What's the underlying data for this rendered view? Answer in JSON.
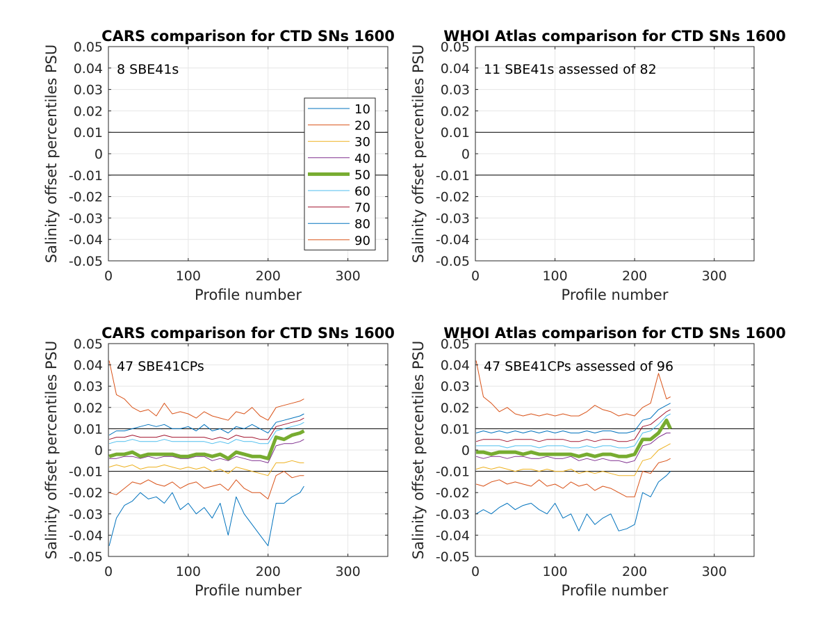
{
  "chart_data": [
    {
      "type": "line",
      "title": "CARS comparison for CTD SNs 1600",
      "annotation": "8 SBE41s",
      "xlabel": "Profile number",
      "ylabel": "Salinity offset percentiles PSU",
      "xlim": [
        0,
        350
      ],
      "ylim": [
        -0.05,
        0.05
      ],
      "x_ticks": [
        "0",
        "100",
        "200",
        "300"
      ],
      "y_ticks": [
        "-0.05",
        "-0.04",
        "-0.03",
        "-0.02",
        "-0.01",
        "0",
        "0.01",
        "0.02",
        "0.03",
        "0.04",
        "0.05"
      ],
      "reference_lines": [
        0.01,
        -0.01
      ],
      "grid": true,
      "legend": {
        "placement": "right",
        "entries": [
          "10",
          "20",
          "30",
          "40",
          "50",
          "60",
          "70",
          "80",
          "90"
        ]
      },
      "series": []
    },
    {
      "type": "line",
      "title": "WHOI Atlas comparison for CTD SNs 1600",
      "annotation": "11 SBE41s assessed of 82",
      "xlabel": "Profile number",
      "ylabel": "Salinity offset percentiles PSU",
      "xlim": [
        0,
        350
      ],
      "ylim": [
        -0.05,
        0.05
      ],
      "x_ticks": [
        "0",
        "100",
        "200",
        "300"
      ],
      "y_ticks": [
        "-0.05",
        "-0.04",
        "-0.03",
        "-0.02",
        "-0.01",
        "0",
        "0.01",
        "0.02",
        "0.03",
        "0.04",
        "0.05"
      ],
      "reference_lines": [
        0.01,
        -0.01
      ],
      "grid": true,
      "series": []
    },
    {
      "type": "line",
      "title": "CARS comparison for CTD SNs 1600",
      "annotation": "47 SBE41CPs",
      "xlabel": "Profile number",
      "ylabel": "Salinity offset percentiles PSU",
      "xlim": [
        0,
        350
      ],
      "ylim": [
        -0.05,
        0.05
      ],
      "x_ticks": [
        "0",
        "100",
        "200",
        "300"
      ],
      "y_ticks": [
        "-0.05",
        "-0.04",
        "-0.03",
        "-0.02",
        "-0.01",
        "0",
        "0.01",
        "0.02",
        "0.03",
        "0.04",
        "0.05"
      ],
      "reference_lines": [
        0.01,
        -0.01
      ],
      "grid": true,
      "x": [
        1,
        10,
        20,
        30,
        40,
        50,
        60,
        70,
        80,
        90,
        100,
        110,
        120,
        130,
        140,
        150,
        160,
        170,
        180,
        190,
        200,
        210,
        220,
        230,
        240,
        245
      ],
      "series": [
        {
          "name": "10",
          "color": "#0072bd",
          "values": [
            -0.045,
            -0.032,
            -0.026,
            -0.024,
            -0.02,
            -0.023,
            -0.022,
            -0.025,
            -0.02,
            -0.028,
            -0.025,
            -0.03,
            -0.027,
            -0.032,
            -0.025,
            -0.04,
            -0.022,
            -0.03,
            -0.035,
            -0.04,
            -0.045,
            -0.025,
            -0.025,
            -0.022,
            -0.02,
            -0.017
          ]
        },
        {
          "name": "20",
          "color": "#d95319",
          "values": [
            -0.02,
            -0.021,
            -0.018,
            -0.015,
            -0.016,
            -0.014,
            -0.016,
            -0.017,
            -0.015,
            -0.018,
            -0.016,
            -0.015,
            -0.018,
            -0.017,
            -0.016,
            -0.019,
            -0.014,
            -0.018,
            -0.02,
            -0.02,
            -0.023,
            -0.012,
            -0.01,
            -0.013,
            -0.012,
            -0.012
          ]
        },
        {
          "name": "30",
          "color": "#edb120",
          "values": [
            -0.008,
            -0.007,
            -0.008,
            -0.007,
            -0.009,
            -0.008,
            -0.008,
            -0.007,
            -0.008,
            -0.009,
            -0.008,
            -0.009,
            -0.008,
            -0.01,
            -0.009,
            -0.011,
            -0.008,
            -0.009,
            -0.01,
            -0.011,
            -0.012,
            -0.006,
            -0.006,
            -0.005,
            -0.006,
            -0.006
          ]
        },
        {
          "name": "40",
          "color": "#7e2f8e",
          "values": [
            -0.004,
            -0.004,
            -0.003,
            -0.003,
            -0.004,
            -0.003,
            -0.004,
            -0.003,
            -0.003,
            -0.004,
            -0.004,
            -0.003,
            -0.003,
            -0.005,
            -0.004,
            -0.005,
            -0.003,
            -0.004,
            -0.005,
            -0.005,
            -0.006,
            0.002,
            0.003,
            0.003,
            0.004,
            0.005
          ]
        },
        {
          "name": "50",
          "color": "#77ac30",
          "values": [
            -0.003,
            -0.002,
            -0.002,
            -0.001,
            -0.003,
            -0.002,
            -0.002,
            -0.002,
            -0.002,
            -0.003,
            -0.003,
            -0.002,
            -0.002,
            -0.003,
            -0.002,
            -0.004,
            -0.001,
            -0.002,
            -0.003,
            -0.003,
            -0.004,
            0.006,
            0.005,
            0.007,
            0.008,
            0.009
          ]
        },
        {
          "name": "60",
          "color": "#4dbeee",
          "values": [
            0.003,
            0.004,
            0.004,
            0.005,
            0.004,
            0.004,
            0.004,
            0.005,
            0.004,
            0.004,
            0.004,
            0.004,
            0.004,
            0.003,
            0.004,
            0.003,
            0.005,
            0.004,
            0.004,
            0.003,
            0.003,
            0.009,
            0.01,
            0.011,
            0.012,
            0.013
          ]
        },
        {
          "name": "70",
          "color": "#a2142f",
          "values": [
            0.005,
            0.006,
            0.006,
            0.007,
            0.006,
            0.006,
            0.006,
            0.007,
            0.006,
            0.006,
            0.006,
            0.006,
            0.006,
            0.005,
            0.006,
            0.005,
            0.007,
            0.006,
            0.006,
            0.005,
            0.005,
            0.011,
            0.012,
            0.013,
            0.014,
            0.015
          ]
        },
        {
          "name": "80",
          "color": "#0072bd",
          "values": [
            0.007,
            0.009,
            0.009,
            0.01,
            0.011,
            0.012,
            0.011,
            0.012,
            0.01,
            0.01,
            0.011,
            0.009,
            0.012,
            0.009,
            0.01,
            0.008,
            0.011,
            0.01,
            0.012,
            0.01,
            0.008,
            0.013,
            0.014,
            0.015,
            0.016,
            0.017
          ]
        },
        {
          "name": "90",
          "color": "#d95319",
          "values": [
            0.042,
            0.026,
            0.024,
            0.02,
            0.018,
            0.019,
            0.016,
            0.022,
            0.017,
            0.018,
            0.017,
            0.015,
            0.018,
            0.016,
            0.015,
            0.014,
            0.018,
            0.017,
            0.02,
            0.016,
            0.014,
            0.02,
            0.021,
            0.022,
            0.023,
            0.024
          ]
        }
      ]
    },
    {
      "type": "line",
      "title": "WHOI Atlas comparison for CTD SNs 1600",
      "annotation": "47 SBE41CPs assessed of 96",
      "xlabel": "Profile number",
      "ylabel": "Salinity offset percentiles PSU",
      "xlim": [
        0,
        350
      ],
      "ylim": [
        -0.05,
        0.05
      ],
      "x_ticks": [
        "0",
        "100",
        "200",
        "300"
      ],
      "y_ticks": [
        "-0.05",
        "-0.04",
        "-0.03",
        "-0.02",
        "-0.01",
        "0",
        "0.01",
        "0.02",
        "0.03",
        "0.04",
        "0.05"
      ],
      "reference_lines": [
        0.01,
        -0.01
      ],
      "grid": true,
      "x": [
        1,
        10,
        20,
        30,
        40,
        50,
        60,
        70,
        80,
        90,
        100,
        110,
        120,
        130,
        140,
        150,
        160,
        170,
        180,
        190,
        200,
        210,
        220,
        230,
        240,
        245
      ],
      "series": [
        {
          "name": "10",
          "color": "#0072bd",
          "values": [
            -0.03,
            -0.028,
            -0.03,
            -0.027,
            -0.025,
            -0.028,
            -0.026,
            -0.025,
            -0.028,
            -0.03,
            -0.025,
            -0.032,
            -0.03,
            -0.038,
            -0.03,
            -0.035,
            -0.032,
            -0.03,
            -0.038,
            -0.037,
            -0.035,
            -0.02,
            -0.022,
            -0.015,
            -0.012,
            -0.01
          ]
        },
        {
          "name": "20",
          "color": "#d95319",
          "values": [
            -0.016,
            -0.017,
            -0.015,
            -0.014,
            -0.016,
            -0.015,
            -0.016,
            -0.017,
            -0.014,
            -0.017,
            -0.016,
            -0.018,
            -0.015,
            -0.017,
            -0.016,
            -0.019,
            -0.017,
            -0.018,
            -0.02,
            -0.022,
            -0.022,
            -0.01,
            -0.011,
            -0.006,
            -0.005,
            -0.004
          ]
        },
        {
          "name": "30",
          "color": "#edb120",
          "values": [
            -0.009,
            -0.008,
            -0.009,
            -0.008,
            -0.009,
            -0.01,
            -0.009,
            -0.009,
            -0.01,
            -0.009,
            -0.01,
            -0.01,
            -0.009,
            -0.011,
            -0.01,
            -0.011,
            -0.01,
            -0.011,
            -0.012,
            -0.012,
            -0.012,
            -0.005,
            -0.004,
            0.0,
            0.002,
            0.003
          ]
        },
        {
          "name": "40",
          "color": "#7e2f8e",
          "values": [
            -0.003,
            -0.004,
            -0.003,
            -0.003,
            -0.004,
            -0.003,
            -0.003,
            -0.004,
            -0.004,
            -0.003,
            -0.004,
            -0.004,
            -0.003,
            -0.005,
            -0.004,
            -0.005,
            -0.004,
            -0.005,
            -0.005,
            -0.006,
            -0.005,
            0.002,
            0.003,
            0.006,
            0.008,
            0.008
          ]
        },
        {
          "name": "50",
          "color": "#77ac30",
          "values": [
            -0.001,
            -0.001,
            -0.002,
            -0.001,
            -0.001,
            -0.001,
            -0.002,
            -0.001,
            -0.002,
            -0.002,
            -0.002,
            -0.002,
            -0.002,
            -0.003,
            -0.002,
            -0.003,
            -0.002,
            -0.002,
            -0.003,
            -0.003,
            -0.002,
            0.005,
            0.005,
            0.008,
            0.014,
            0.01
          ]
        },
        {
          "name": "60",
          "color": "#4dbeee",
          "values": [
            0.002,
            0.002,
            0.002,
            0.002,
            0.001,
            0.002,
            0.002,
            0.002,
            0.001,
            0.002,
            0.002,
            0.002,
            0.001,
            0.001,
            0.002,
            0.001,
            0.002,
            0.002,
            0.001,
            0.001,
            0.002,
            0.008,
            0.009,
            0.012,
            0.016,
            0.017
          ]
        },
        {
          "name": "70",
          "color": "#a2142f",
          "values": [
            0.004,
            0.005,
            0.005,
            0.005,
            0.004,
            0.005,
            0.005,
            0.005,
            0.004,
            0.005,
            0.005,
            0.005,
            0.004,
            0.004,
            0.005,
            0.004,
            0.005,
            0.005,
            0.004,
            0.004,
            0.005,
            0.011,
            0.012,
            0.015,
            0.018,
            0.019
          ]
        },
        {
          "name": "80",
          "color": "#0072bd",
          "values": [
            0.008,
            0.009,
            0.008,
            0.009,
            0.008,
            0.009,
            0.008,
            0.009,
            0.008,
            0.009,
            0.008,
            0.009,
            0.008,
            0.008,
            0.009,
            0.008,
            0.009,
            0.009,
            0.008,
            0.008,
            0.009,
            0.014,
            0.015,
            0.019,
            0.021,
            0.022
          ]
        },
        {
          "name": "90",
          "color": "#d95319",
          "values": [
            0.042,
            0.025,
            0.022,
            0.018,
            0.02,
            0.017,
            0.016,
            0.017,
            0.016,
            0.017,
            0.016,
            0.017,
            0.016,
            0.016,
            0.018,
            0.021,
            0.019,
            0.018,
            0.016,
            0.017,
            0.016,
            0.02,
            0.022,
            0.036,
            0.024,
            0.025
          ]
        }
      ]
    }
  ]
}
